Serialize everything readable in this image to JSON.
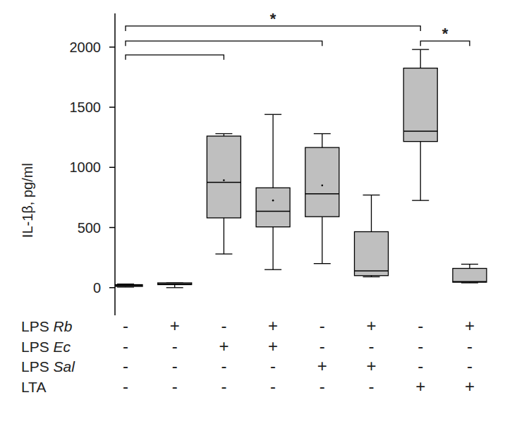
{
  "chart_data": {
    "type": "box",
    "y_label": "IL-1β, pg/ml",
    "categories": [
      null,
      null,
      null,
      null,
      null,
      null,
      null,
      null
    ],
    "color": "#bfbfbf",
    "ylim": [
      -230,
      2280
    ],
    "yticks": [
      0,
      500,
      1000,
      1500,
      2000
    ],
    "boxes": [
      {
        "min": 5,
        "q1": 10,
        "median": 18,
        "q3": 25,
        "max": 30,
        "mean": null
      },
      {
        "min": 0,
        "q1": 25,
        "median": 30,
        "q3": 40,
        "max": 40,
        "mean": null
      },
      {
        "min": 280,
        "q1": 580,
        "median": 875,
        "q3": 1260,
        "max": 1280,
        "mean": 893
      },
      {
        "min": 150,
        "q1": 505,
        "median": 635,
        "q3": 830,
        "max": 1440,
        "mean": 725
      },
      {
        "min": 200,
        "q1": 590,
        "median": 780,
        "q3": 1165,
        "max": 1280,
        "mean": 850
      },
      {
        "min": 90,
        "q1": 100,
        "median": 140,
        "q3": 465,
        "max": 770,
        "mean": null
      },
      {
        "min": 725,
        "q1": 1215,
        "median": 1300,
        "q3": 1825,
        "max": 1980,
        "mean": null
      },
      {
        "min": 40,
        "q1": 45,
        "median": 50,
        "q3": 160,
        "max": 195,
        "mean": null
      }
    ],
    "factors": [
      {
        "name": "LPS Rb",
        "levels": [
          "-",
          "+",
          "-",
          "+",
          "-",
          "+",
          "-",
          "+"
        ]
      },
      {
        "name": "LPS Ec",
        "levels": [
          "-",
          "-",
          "+",
          "+",
          "-",
          "-",
          "-",
          "-"
        ]
      },
      {
        "name": "LPS Sal",
        "levels": [
          "-",
          "-",
          "-",
          "-",
          "+",
          "+",
          "-",
          "-"
        ]
      },
      {
        "name": "LTA",
        "levels": [
          "-",
          "-",
          "-",
          "-",
          "-",
          "-",
          "+",
          "+"
        ]
      }
    ],
    "annotations": [
      {
        "from": 0,
        "to": 2,
        "y": 1935,
        "label": null
      },
      {
        "from": 0,
        "to": 4,
        "y": 2050,
        "label": null
      },
      {
        "from": 0,
        "to": 6,
        "y": 2175,
        "label": "*"
      },
      {
        "from": 6,
        "to": 7,
        "y": 2050,
        "label": "*"
      }
    ]
  }
}
